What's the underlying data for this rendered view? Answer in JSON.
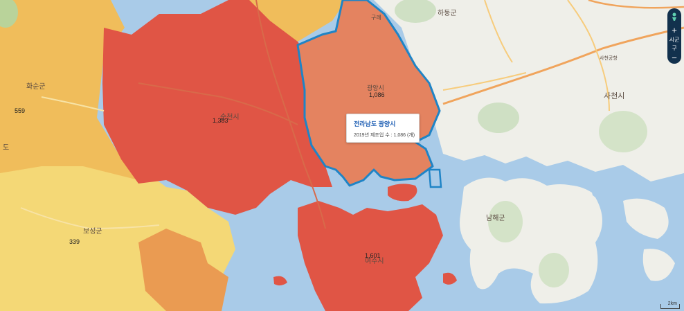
{
  "colors": {
    "sea": "#a9cbe8",
    "land_plain": "#efefe9",
    "red_dark": "#e05545",
    "red_mid": "#e5694f",
    "orange_sel": "#e48360",
    "orange_mid": "#ea9b52",
    "orange_light": "#f0bd5b",
    "yellow": "#f4d876",
    "highlight_border": "#1f84c6"
  },
  "regions": {
    "gwangyang": {
      "name": "광양시",
      "value": "1,086"
    },
    "suncheon": {
      "name": "순천시",
      "value": "1,383"
    },
    "yeosu": {
      "name": "여수시",
      "value": "1,601"
    },
    "hwasun": {
      "name": "화순군",
      "value": "559"
    },
    "boseong": {
      "name": "보성군",
      "value": "339"
    }
  },
  "place_labels": {
    "hadong": "하동군",
    "sacheon": "사천시",
    "namhae": "남해군",
    "sacheon_airport": "사천공항",
    "hwasun_edge": "도",
    "gurye": "구례"
  },
  "tooltip": {
    "title": "전라남도 광양시",
    "line": "2019년 제조업 수  : 1,086 (개)"
  },
  "controls": {
    "zoom_in": "+",
    "zoom_out": "−",
    "level": "시군구",
    "layer_icon": "person-pin-icon"
  },
  "scale_label": "2km"
}
